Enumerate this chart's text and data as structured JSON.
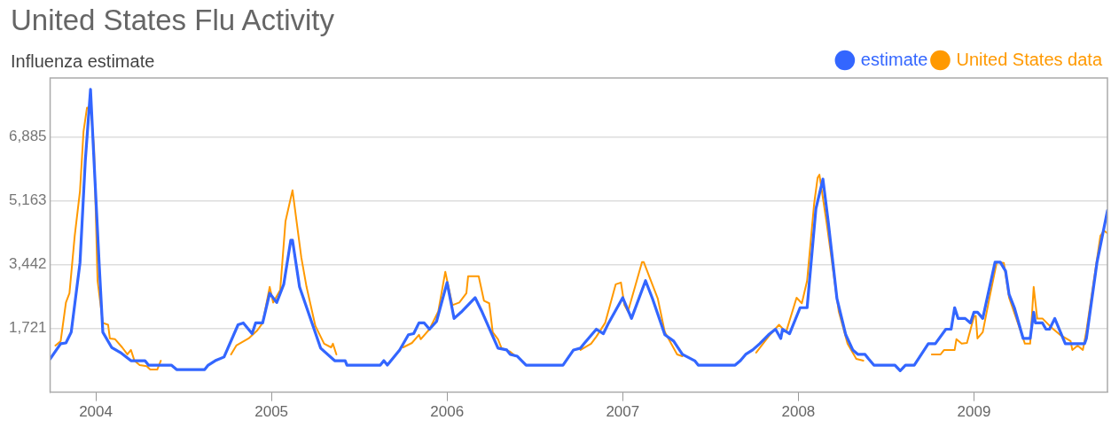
{
  "chart_data": {
    "type": "line",
    "title": "United States Flu Activity",
    "subtitle": "Influenza estimate",
    "xlim": [
      2003.74,
      2009.76
    ],
    "xticks": [
      2004,
      2005,
      2006,
      2007,
      2008,
      2009
    ],
    "ylim": [
      0,
      8480
    ],
    "yticks": [
      {
        "value": 1721,
        "label": "1,721"
      },
      {
        "value": 3442,
        "label": "3,442"
      },
      {
        "value": 5163,
        "label": "5,163"
      },
      {
        "value": 6885,
        "label": "6,885"
      }
    ],
    "grid": "y",
    "legend": "top right",
    "marker": "none",
    "line_style": "solid",
    "series": [
      {
        "name": "estimate",
        "color": "#3366ff",
        "x": [
          2003.74,
          2003.8,
          2003.83,
          2003.86,
          2003.91,
          2003.94,
          2003.97,
          2003.99,
          2004.02,
          2004.04,
          2004.09,
          2004.14,
          2004.2,
          2004.28,
          2004.3,
          2004.43,
          2004.46,
          2004.62,
          2004.64,
          2004.68,
          2004.73,
          2004.81,
          2004.84,
          2004.89,
          2004.91,
          2004.95,
          2004.99,
          2005.03,
          2005.07,
          2005.11,
          2005.12,
          2005.16,
          2005.28,
          2005.36,
          2005.42,
          2005.43,
          2005.62,
          2005.64,
          2005.66,
          2005.73,
          2005.78,
          2005.81,
          2005.84,
          2005.87,
          2005.9,
          2005.94,
          2006.0,
          2006.04,
          2006.08,
          2006.16,
          2006.2,
          2006.25,
          2006.29,
          2006.34,
          2006.36,
          2006.4,
          2006.45,
          2006.66,
          2006.72,
          2006.76,
          2006.78,
          2006.85,
          2006.89,
          2006.92,
          2007.0,
          2007.05,
          2007.13,
          2007.17,
          2007.24,
          2007.29,
          2007.34,
          2007.41,
          2007.43,
          2007.64,
          2007.67,
          2007.7,
          2007.74,
          2007.78,
          2007.83,
          2007.87,
          2007.9,
          2007.91,
          2007.95,
          2008.01,
          2008.05,
          2008.1,
          2008.14,
          2008.17,
          2008.22,
          2008.27,
          2008.31,
          2008.34,
          2008.38,
          2008.4,
          2008.43,
          2008.55,
          2008.58,
          2008.61,
          2008.66,
          2008.74,
          2008.78,
          2008.84,
          2008.87,
          2008.89,
          2008.91,
          2008.95,
          2008.98,
          2009.0,
          2009.02,
          2009.05,
          2009.12,
          2009.15,
          2009.18,
          2009.2,
          2009.23,
          2009.28,
          2009.32,
          2009.34,
          2009.35,
          2009.39,
          2009.41,
          2009.43,
          2009.46,
          2009.52,
          2009.63,
          2009.64,
          2009.7,
          2009.76
        ],
        "values": [
          900,
          1310,
          1330,
          1620,
          3490,
          6230,
          8170,
          6230,
          3390,
          1620,
          1210,
          1070,
          850,
          850,
          730,
          730,
          610,
          610,
          730,
          850,
          950,
          1820,
          1870,
          1580,
          1870,
          1870,
          2670,
          2420,
          2910,
          4100,
          4100,
          2840,
          1190,
          850,
          850,
          730,
          730,
          850,
          730,
          1140,
          1550,
          1580,
          1870,
          1870,
          1700,
          1910,
          2960,
          1990,
          2160,
          2550,
          2160,
          1620,
          1190,
          1140,
          1020,
          970,
          730,
          730,
          1140,
          1190,
          1310,
          1700,
          1580,
          1870,
          2550,
          1990,
          3010,
          2520,
          1550,
          1380,
          1020,
          850,
          730,
          730,
          850,
          1020,
          1140,
          1310,
          1550,
          1700,
          1450,
          1700,
          1580,
          2280,
          2280,
          4950,
          5750,
          4610,
          2520,
          1550,
          1140,
          1020,
          1020,
          900,
          730,
          730,
          580,
          730,
          730,
          1310,
          1310,
          1700,
          1700,
          2280,
          1990,
          1990,
          1870,
          2160,
          2160,
          1990,
          3510,
          3510,
          3270,
          2640,
          2280,
          1450,
          1450,
          2160,
          1870,
          1870,
          1700,
          1700,
          1990,
          1310,
          1310,
          1450,
          3490,
          4900
        ]
      },
      {
        "name": "United States data",
        "color": "#ff9900",
        "x": [
          2003.77,
          2003.8,
          2003.83,
          2003.85,
          2003.88,
          2003.91,
          2003.93,
          2003.95,
          2003.97,
          2003.99,
          2004.01,
          2004.04,
          2004.07,
          2004.08,
          2004.11,
          2004.15,
          2004.18,
          2004.2,
          2004.22,
          2004.25,
          2004.29,
          2004.31,
          2004.35,
          2004.37,
          2004.5,
          2004.77,
          2004.8,
          2004.87,
          2004.92,
          2004.95,
          2004.99,
          2005.01,
          2005.05,
          2005.08,
          2005.12,
          2005.17,
          2005.2,
          2005.25,
          2005.3,
          2005.34,
          2005.35,
          2005.37,
          2005.5,
          2005.75,
          2005.8,
          2005.84,
          2005.85,
          2005.9,
          2005.95,
          2005.99,
          2006.03,
          2006.07,
          2006.11,
          2006.12,
          2006.18,
          2006.21,
          2006.24,
          2006.26,
          2006.29,
          2006.31,
          2006.36,
          2006.39,
          2006.5,
          2006.76,
          2006.82,
          2006.85,
          2006.9,
          2006.96,
          2006.99,
          2007.01,
          2007.03,
          2007.07,
          2007.11,
          2007.12,
          2007.2,
          2007.24,
          2007.31,
          2007.34,
          2007.5,
          2007.76,
          2007.83,
          2007.89,
          2007.93,
          2007.99,
          2008.02,
          2008.05,
          2008.09,
          2008.11,
          2008.12,
          2008.16,
          2008.23,
          2008.28,
          2008.33,
          2008.37,
          2008.5,
          2008.76,
          2008.81,
          2008.83,
          2008.89,
          2008.9,
          2008.93,
          2008.96,
          2009.0,
          2009.01,
          2009.02,
          2009.05,
          2009.09,
          2009.13,
          2009.17,
          2009.2,
          2009.28,
          2009.29,
          2009.32,
          2009.34,
          2009.36,
          2009.39,
          2009.44,
          2009.49,
          2009.55,
          2009.56,
          2009.59,
          2009.62,
          2009.64,
          2009.72,
          2009.74,
          2009.76
        ],
        "values": [
          1260,
          1380,
          2420,
          2670,
          4220,
          5430,
          7030,
          7680,
          7680,
          6600,
          3010,
          1870,
          1820,
          1450,
          1430,
          1210,
          1020,
          1140,
          850,
          730,
          700,
          610,
          610,
          850,
          null,
          1020,
          1260,
          1450,
          1670,
          1870,
          2840,
          2420,
          2760,
          4610,
          5450,
          3640,
          2840,
          1790,
          1310,
          1210,
          1310,
          1020,
          null,
          1210,
          1330,
          1550,
          1430,
          1700,
          2180,
          3250,
          2350,
          2420,
          2670,
          3130,
          3130,
          2470,
          2400,
          1620,
          1430,
          1190,
          1090,
          970,
          null,
          1140,
          1310,
          1500,
          1870,
          2910,
          2960,
          2350,
          2180,
          2840,
          3510,
          3510,
          2520,
          1620,
          1020,
          970,
          null,
          1070,
          1500,
          1820,
          1620,
          2550,
          2400,
          3010,
          5090,
          5790,
          5870,
          4610,
          2180,
          1310,
          900,
          850,
          null,
          1020,
          1020,
          1140,
          1140,
          1430,
          1310,
          1330,
          2040,
          2060,
          1450,
          1620,
          2590,
          3510,
          3490,
          2550,
          1450,
          1310,
          1310,
          2840,
          1990,
          1990,
          1750,
          1550,
          1380,
          1140,
          1260,
          1140,
          1650,
          4220,
          4360,
          4290
        ]
      }
    ]
  }
}
